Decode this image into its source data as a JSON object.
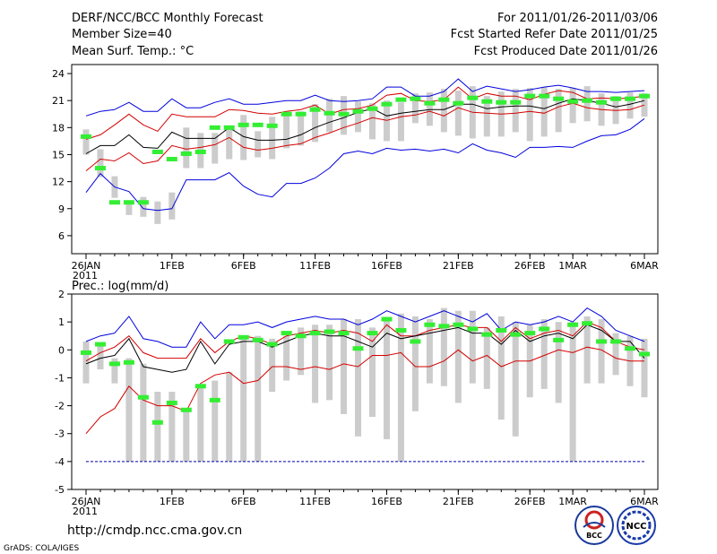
{
  "header": {
    "title": "DERF/NCC/BCC Monthly Forecast",
    "member_size": "Member Size=40",
    "period": "For 2011/01/26-2011/03/06",
    "fcst_started": "Fcst Started Refer Date 2011/01/25",
    "fcst_produced": "Fcst Produced Date 2011/01/26"
  },
  "footer": {
    "url": "http://cmdp.ncc.cma.gov.cn",
    "credit": "GrADS: COLA/IGES",
    "logo_bcc_text": "BCC",
    "logo_ncc_text": "NCC"
  },
  "colors": {
    "envelope_outer": "#0000dd",
    "envelope_inner": "#d40000",
    "ensemble_mean": "#000000",
    "observation": "#33ee33",
    "spread_bar": "#cccccc",
    "baseline": "#0000aa"
  },
  "chart_data": [
    {
      "type": "line",
      "title": "Mean Surf. Temp.: °C",
      "ylim": [
        4,
        25
      ],
      "yticks": [
        6,
        9,
        12,
        15,
        18,
        21,
        24
      ],
      "x_tick_labels": [
        {
          "day": 0,
          "label": "26JAN",
          "sub": "2011"
        },
        {
          "day": 6,
          "label": "1FEB"
        },
        {
          "day": 11,
          "label": "6FEB"
        },
        {
          "day": 16,
          "label": "11FEB"
        },
        {
          "day": 21,
          "label": "16FEB"
        },
        {
          "day": 26,
          "label": "21FEB"
        },
        {
          "day": 31,
          "label": "26FEB"
        },
        {
          "day": 34,
          "label": "1MAR"
        },
        {
          "day": 39,
          "label": "6MAR"
        }
      ],
      "x": [
        0,
        1,
        2,
        3,
        4,
        5,
        6,
        7,
        8,
        9,
        10,
        11,
        12,
        13,
        14,
        15,
        16,
        17,
        18,
        19,
        20,
        21,
        22,
        23,
        24,
        25,
        26,
        27,
        28,
        29,
        30,
        31,
        32,
        33,
        34,
        35,
        36,
        37,
        38,
        39
      ],
      "series": [
        {
          "name": "max",
          "values": [
            19.3,
            19.8,
            20,
            20.8,
            19.8,
            19.8,
            21.2,
            20.2,
            20.2,
            20.8,
            21.2,
            20.6,
            20.6,
            20.8,
            21,
            21,
            21.6,
            21,
            20.9,
            21,
            21.2,
            22.5,
            22.5,
            21.5,
            21.5,
            22,
            23.4,
            22,
            22.6,
            22.3,
            22,
            22.2,
            22.5,
            22.7,
            22.4,
            22,
            22,
            21.9,
            22,
            22.1
          ]
        },
        {
          "name": "upper",
          "values": [
            16.7,
            17.2,
            18.3,
            19.5,
            18.3,
            17.6,
            19.5,
            19.2,
            19.2,
            19.2,
            20,
            19.9,
            19.6,
            19.5,
            19.8,
            20,
            20.5,
            19.5,
            20,
            20.1,
            20.5,
            21.6,
            21.8,
            21,
            20.9,
            21.1,
            22.5,
            21.2,
            21.8,
            21.5,
            21.5,
            21.1,
            21.7,
            22.1,
            21.9,
            21.2,
            21.3,
            21.2,
            21.3,
            21.5
          ]
        },
        {
          "name": "mean",
          "values": [
            15.1,
            16,
            16,
            17.2,
            15.8,
            15.7,
            17.5,
            16.8,
            16.8,
            16.8,
            18,
            17,
            16.6,
            16.6,
            16.7,
            17.2,
            18,
            18.6,
            19.1,
            19.7,
            20.1,
            19.3,
            19.6,
            19.8,
            20,
            20,
            20.6,
            20.6,
            20.1,
            20.3,
            20.4,
            20.4,
            20.1,
            20.7,
            21.2,
            21,
            20.7,
            20.3,
            20.6,
            21
          ]
        },
        {
          "name": "lower",
          "values": [
            13.2,
            14.5,
            14.3,
            15.2,
            14,
            14.3,
            16,
            15.6,
            15.8,
            16.1,
            16.9,
            15.8,
            15.5,
            15.7,
            16,
            16.2,
            16.9,
            17.4,
            18,
            18.5,
            19.1,
            18.8,
            19.2,
            19.4,
            19.8,
            19.3,
            20.2,
            19.7,
            19.6,
            19.5,
            19.6,
            19.8,
            19.6,
            20.3,
            20.7,
            20.2,
            20,
            19.9,
            20,
            20.5
          ]
        },
        {
          "name": "min",
          "values": [
            10.8,
            12.9,
            11.4,
            10.9,
            9,
            8.8,
            9,
            12.2,
            12.2,
            12.2,
            13,
            11.5,
            10.6,
            10.3,
            11.8,
            11.8,
            12.4,
            13.5,
            15.1,
            15.4,
            15.1,
            15.7,
            15.5,
            15.6,
            15.4,
            15.6,
            15.2,
            16.2,
            15.5,
            15.2,
            14.7,
            15.8,
            15.8,
            15.9,
            15.8,
            16.5,
            17.1,
            17.2,
            17.8,
            19
          ]
        }
      ],
      "spread_bars": [
        [
          15,
          17.8
        ],
        [
          12.5,
          15.6
        ],
        [
          10.2,
          12.6
        ],
        [
          8.3,
          9.7
        ],
        [
          8.1,
          10.3
        ],
        [
          7.3,
          9.8
        ],
        [
          7.8,
          10.8
        ],
        [
          13.5,
          18
        ],
        [
          13.5,
          17.4
        ],
        [
          14,
          17.4
        ],
        [
          14.5,
          18.2
        ],
        [
          14.4,
          19.4
        ],
        [
          14.7,
          17.6
        ],
        [
          14.5,
          19.2
        ],
        [
          15.7,
          19.3
        ],
        [
          16,
          19.8
        ],
        [
          16.4,
          20.6
        ],
        [
          17.5,
          21.2
        ],
        [
          17.2,
          21.5
        ],
        [
          17.5,
          20.9
        ],
        [
          16.7,
          20.7
        ],
        [
          16.5,
          21
        ],
        [
          16.5,
          20.8
        ],
        [
          18.5,
          21.8
        ],
        [
          18.2,
          21.9
        ],
        [
          17.5,
          22.3
        ],
        [
          17.1,
          22.1
        ],
        [
          16.8,
          22.6
        ],
        [
          17,
          21.5
        ],
        [
          17,
          22
        ],
        [
          17.5,
          22.3
        ],
        [
          16.5,
          22.4
        ],
        [
          17,
          22.5
        ],
        [
          17.5,
          22.3
        ],
        [
          18.5,
          22.4
        ],
        [
          18.7,
          22.6
        ],
        [
          18.2,
          21.8
        ],
        [
          18.4,
          21.5
        ],
        [
          19,
          21.9
        ],
        [
          19.2,
          21.8
        ]
      ],
      "observed": [
        17,
        13.5,
        9.7,
        9.7,
        9.7,
        15.3,
        14.5,
        15.1,
        15.3,
        18,
        18,
        18.3,
        18.3,
        18.2,
        19.5,
        19.5,
        20,
        19.6,
        19.5,
        19.8,
        20.1,
        20.6,
        21.1,
        21.2,
        20.7,
        21.1,
        20.7,
        21.3,
        20.9,
        20.8,
        20.8,
        21.5,
        21.5,
        21.2,
        20.9,
        21,
        20.8,
        21.2,
        21.2,
        21.5
      ]
    },
    {
      "type": "line",
      "title": "Prec.: log(mm/d)",
      "ylim": [
        -5,
        2
      ],
      "yticks": [
        -5,
        -4,
        -3,
        -2,
        -1,
        0,
        1,
        2
      ],
      "x_tick_labels": [
        {
          "day": 0,
          "label": "26JAN",
          "sub": "2011"
        },
        {
          "day": 6,
          "label": "1FEB"
        },
        {
          "day": 11,
          "label": "6FEB"
        },
        {
          "day": 16,
          "label": "11FEB"
        },
        {
          "day": 21,
          "label": "16FEB"
        },
        {
          "day": 26,
          "label": "21FEB"
        },
        {
          "day": 31,
          "label": "26FEB"
        },
        {
          "day": 34,
          "label": "1MAR"
        },
        {
          "day": 39,
          "label": "6MAR"
        }
      ],
      "x": [
        0,
        1,
        2,
        3,
        4,
        5,
        6,
        7,
        8,
        9,
        10,
        11,
        12,
        13,
        14,
        15,
        16,
        17,
        18,
        19,
        20,
        21,
        22,
        23,
        24,
        25,
        26,
        27,
        28,
        29,
        30,
        31,
        32,
        33,
        34,
        35,
        36,
        37,
        38,
        39
      ],
      "series": [
        {
          "name": "max",
          "values": [
            0.3,
            0.5,
            0.6,
            1.2,
            0.4,
            0.3,
            0.1,
            0.1,
            1,
            0.4,
            0.9,
            0.9,
            1,
            0.8,
            1,
            1.1,
            1.2,
            1.1,
            1.1,
            0.9,
            1.1,
            1.4,
            1.2,
            1,
            1.2,
            1.4,
            1.2,
            1,
            1.3,
            0.7,
            1,
            0.9,
            1,
            1.2,
            1,
            1.5,
            1.2,
            0.7,
            0.5,
            0.3
          ]
        },
        {
          "name": "upper",
          "values": [
            -0.4,
            -0.1,
            0.1,
            0.5,
            -0.1,
            -0.3,
            -0.3,
            -0.3,
            0.4,
            -0.1,
            0.3,
            0.5,
            0.4,
            0.2,
            0.5,
            0.6,
            0.7,
            0.6,
            0.7,
            0.6,
            0.3,
            0.9,
            0.5,
            0.5,
            0.7,
            0.8,
            0.9,
            0.8,
            0.8,
            0.3,
            0.8,
            0.4,
            0.6,
            0.7,
            0.5,
            1,
            0.8,
            0.3,
            0.1,
            0
          ]
        },
        {
          "name": "mean",
          "values": [
            -0.5,
            -0.3,
            -0.2,
            0.4,
            -0.6,
            -0.7,
            -0.8,
            -0.7,
            0.3,
            -0.5,
            0.2,
            0.3,
            0.3,
            0.1,
            0.3,
            0.5,
            0.6,
            0.5,
            0.5,
            0.3,
            0.1,
            0.6,
            0.4,
            0.5,
            0.6,
            0.7,
            0.8,
            0.6,
            0.6,
            0.2,
            0.7,
            0.3,
            0.5,
            0.6,
            0.4,
            0.9,
            0.7,
            0.3,
            0.3,
            -0.3
          ]
        },
        {
          "name": "lower",
          "values": [
            -3,
            -2.4,
            -2.1,
            -1.3,
            -1.8,
            -2,
            -2,
            -2.2,
            -1.2,
            -0.9,
            -0.8,
            -1.2,
            -1.1,
            -0.6,
            -0.6,
            -0.7,
            -0.6,
            -0.7,
            -0.5,
            -0.6,
            -0.2,
            -0.2,
            -0.1,
            -0.6,
            -0.6,
            -0.4,
            0,
            -0.4,
            -0.2,
            -0.6,
            -0.4,
            -0.4,
            -0.2,
            0,
            -0.1,
            0.1,
            0,
            -0.3,
            -0.4,
            -0.4
          ]
        },
        {
          "name": "min",
          "values": [
            -4,
            -4,
            -4,
            -4,
            -4,
            -4,
            -4,
            -4,
            -4,
            -4,
            -4,
            -4,
            -4,
            -4,
            -4,
            -4,
            -4,
            -4,
            -4,
            -4,
            -4,
            -4,
            -4,
            -4,
            -4,
            -4,
            -4,
            -4,
            -4,
            -4,
            -4,
            -4,
            -4,
            -4,
            -4,
            -4,
            -4,
            -4,
            -4,
            -4
          ]
        }
      ],
      "spread_bars": [
        [
          -1.2,
          0.3
        ],
        [
          -0.7,
          0.2
        ],
        [
          -1.2,
          -0.3
        ],
        [
          -4,
          -0.3
        ],
        [
          -4,
          -0.5
        ],
        [
          -4,
          -1.5
        ],
        [
          -4,
          -1.5
        ],
        [
          -4,
          -2.1
        ],
        [
          -4,
          -1.3
        ],
        [
          -4,
          -1.1
        ],
        [
          -4,
          -0.8
        ],
        [
          -4,
          0.4
        ],
        [
          -4,
          0.5
        ],
        [
          -1.5,
          0.4
        ],
        [
          -1.1,
          0.5
        ],
        [
          -0.9,
          0.8
        ],
        [
          -1.9,
          0.9
        ],
        [
          -1.8,
          0.9
        ],
        [
          -2.3,
          1.1
        ],
        [
          -3.1,
          1.1
        ],
        [
          -2.4,
          0.8
        ],
        [
          -3.2,
          1.1
        ],
        [
          -4,
          1.3
        ],
        [
          -2.2,
          1.2
        ],
        [
          -1.2,
          1.1
        ],
        [
          -1.3,
          1.5
        ],
        [
          -1.9,
          1.4
        ],
        [
          -1.2,
          1.4
        ],
        [
          -1.4,
          0.8
        ],
        [
          -2.5,
          1.2
        ],
        [
          -3.1,
          1
        ],
        [
          -1.7,
          0.9
        ],
        [
          -1.4,
          1.1
        ],
        [
          -1.9,
          1
        ],
        [
          -4,
          1
        ],
        [
          -1.2,
          1.2
        ],
        [
          -1.2,
          1.1
        ],
        [
          -0.9,
          0.6
        ],
        [
          -1.3,
          0.5
        ],
        [
          -1.7,
          0.4
        ]
      ],
      "observed": [
        -0.1,
        0.2,
        -0.5,
        -0.45,
        -1.7,
        -2.6,
        -1.9,
        -2.15,
        -1.3,
        -1.8,
        0.3,
        0.45,
        0.35,
        0.2,
        0.6,
        0.5,
        0.6,
        0.65,
        0.6,
        0.05,
        0.6,
        1.1,
        0.7,
        0.3,
        0.9,
        0.85,
        0.9,
        0.75,
        0.55,
        0.7,
        0.55,
        0.6,
        0.75,
        0.35,
        0.9,
        0.95,
        0.3,
        0.3,
        0.05,
        -0.15
      ]
    }
  ]
}
